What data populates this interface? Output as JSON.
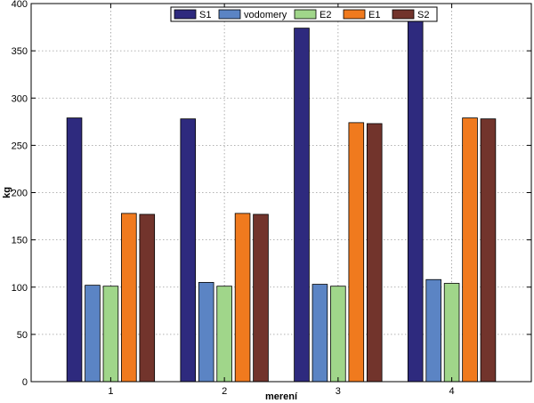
{
  "chart_data": {
    "type": "bar",
    "title": "",
    "xlabel": "merení",
    "ylabel": "kg",
    "categories": [
      "1",
      "2",
      "3",
      "4"
    ],
    "ylim": [
      0,
      400
    ],
    "xlim": [
      0.3,
      4.7
    ],
    "yticks": [
      "0",
      "50",
      "100",
      "150",
      "200",
      "250",
      "300",
      "350",
      "400"
    ],
    "grid": true,
    "legend_position": "top-center",
    "series": [
      {
        "name": "S1",
        "color": "#2e2a7e",
        "values": [
          279,
          278,
          374,
          383
        ]
      },
      {
        "name": "vodomery",
        "color": "#5b84c4",
        "values": [
          102,
          105,
          103,
          108
        ]
      },
      {
        "name": "E2",
        "color": "#a0d68a",
        "values": [
          101,
          101,
          101,
          104
        ]
      },
      {
        "name": "E1",
        "color": "#f07a1e",
        "values": [
          178,
          178,
          274,
          279
        ]
      },
      {
        "name": "S2",
        "color": "#72342c",
        "values": [
          177,
          177,
          273,
          278
        ]
      }
    ]
  }
}
